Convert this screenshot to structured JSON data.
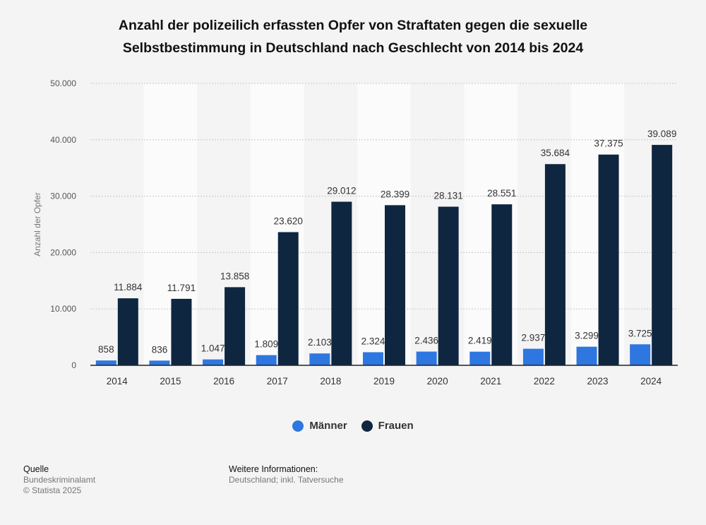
{
  "header": {
    "title_line1": "Anzahl der polizeilich erfassten Opfer von Straftaten gegen die sexuelle",
    "title_line2": "Selbstbestimmung in Deutschland nach Geschlecht von 2014 bis 2024"
  },
  "chart_data": {
    "type": "bar",
    "title": "Anzahl der polizeilich erfassten Opfer von Straftaten gegen die sexuelle Selbstbestimmung in Deutschland nach Geschlecht von 2014 bis 2024",
    "xlabel": "",
    "ylabel": "Anzahl der Opfer",
    "ylim": [
      0,
      50000
    ],
    "yticks": [
      0,
      10000,
      20000,
      30000,
      40000,
      50000
    ],
    "ytick_labels": [
      "0",
      "10.000",
      "20.000",
      "30.000",
      "40.000",
      "50.000"
    ],
    "categories": [
      "2014",
      "2015",
      "2016",
      "2017",
      "2018",
      "2019",
      "2020",
      "2021",
      "2022",
      "2023",
      "2024"
    ],
    "series": [
      {
        "name": "Männer",
        "color": "#2f77e0",
        "values": [
          858,
          836,
          1047,
          1809,
          2103,
          2324,
          2436,
          2419,
          2937,
          3299,
          3725
        ],
        "labels": [
          "858",
          "836",
          "1.047",
          "1.809",
          "2.103",
          "2.324",
          "2.436",
          "2.419",
          "2.937",
          "3.299",
          "3.725"
        ]
      },
      {
        "name": "Frauen",
        "color": "#0f2640",
        "values": [
          11884,
          11791,
          13858,
          23620,
          29012,
          28399,
          28131,
          28551,
          35684,
          37375,
          39089
        ],
        "labels": [
          "11.884",
          "11.791",
          "13.858",
          "23.620",
          "29.012",
          "28.399",
          "28.131",
          "28.551",
          "35.684",
          "37.375",
          "39.089"
        ]
      }
    ],
    "grid": true,
    "legend_position": "bottom-center"
  },
  "legend": {
    "men_label": "Männer",
    "women_label": "Frauen"
  },
  "footer": {
    "source_heading": "Quelle",
    "source_name": "Bundeskriminalamt",
    "copyright": "© Statista 2025",
    "info_heading": "Weitere Informationen:",
    "info_text": "Deutschland; inkl. Tatversuche"
  }
}
